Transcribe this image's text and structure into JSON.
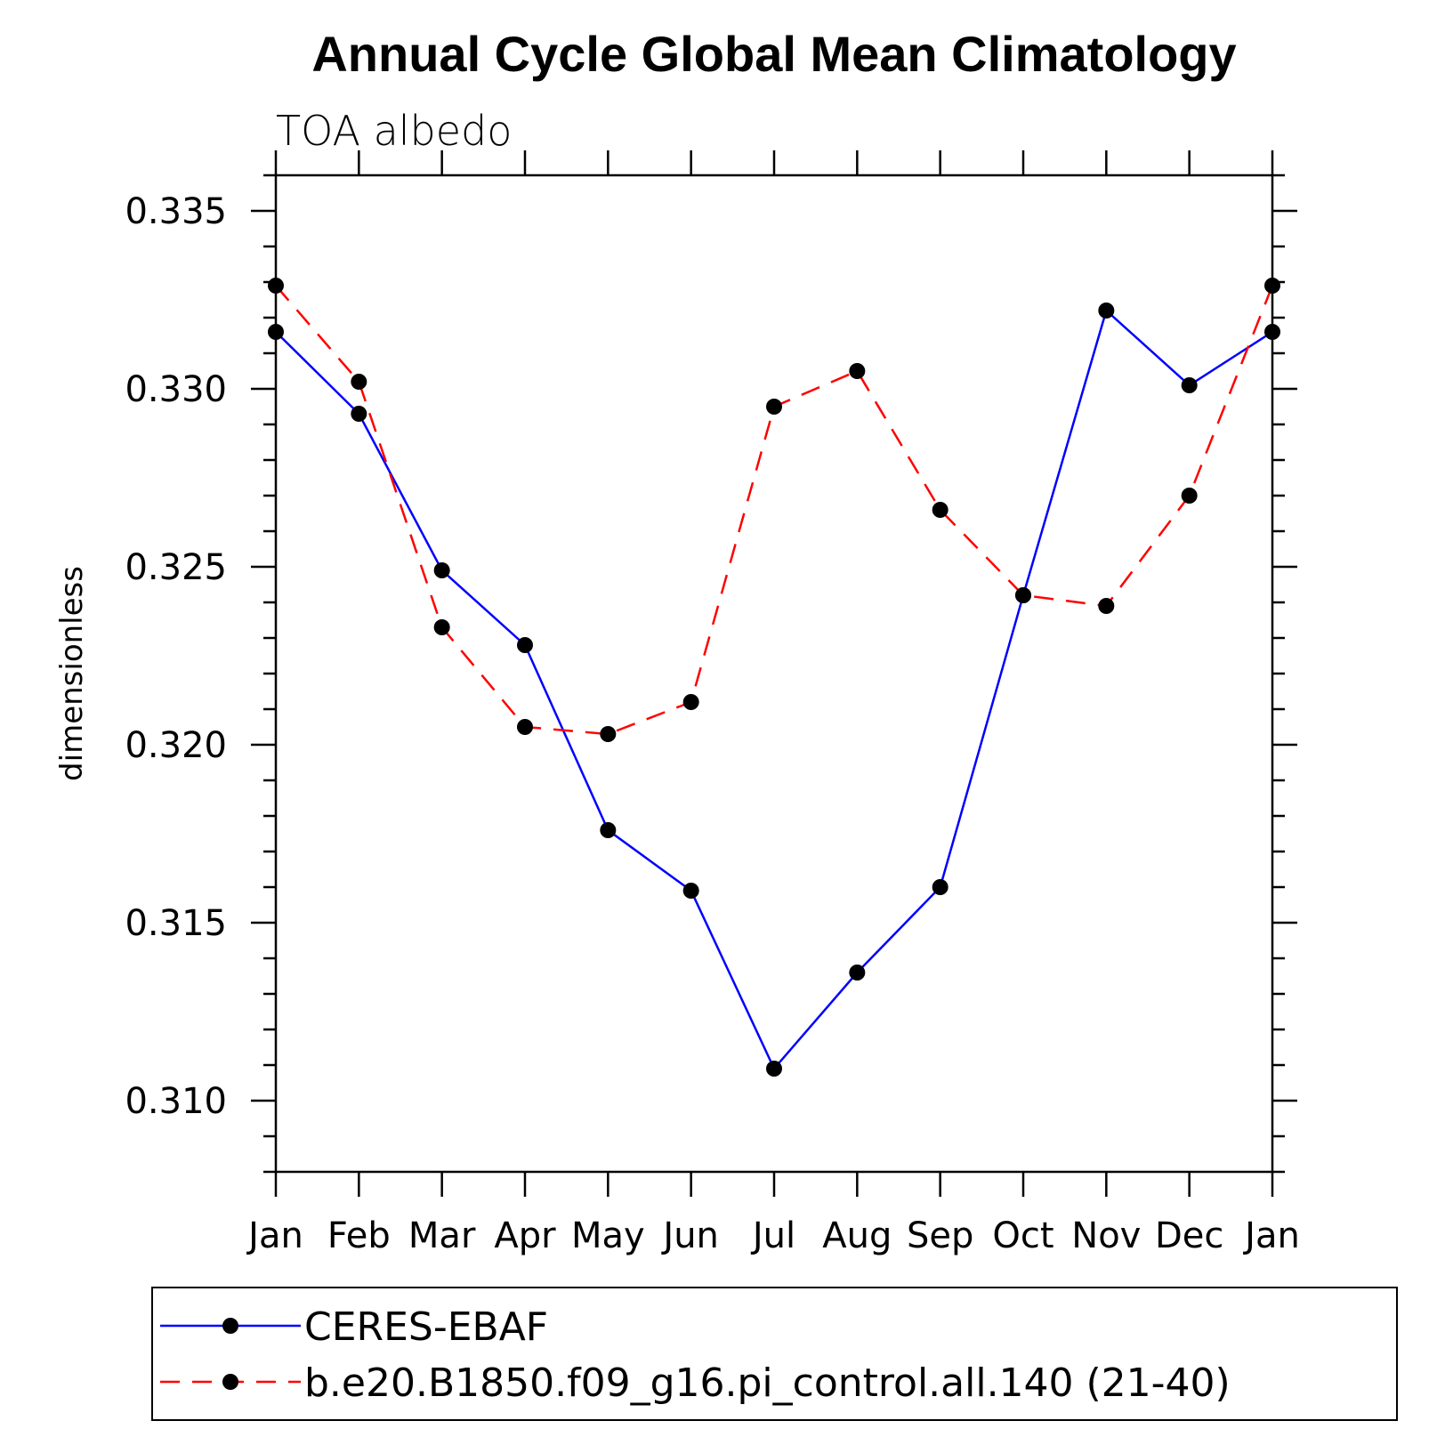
{
  "chart_data": {
    "type": "line",
    "title": "Annual Cycle Global Mean Climatology",
    "subtitle": "TOA albedo",
    "xlabel": "",
    "ylabel": "dimensionless",
    "categories": [
      "Jan",
      "Feb",
      "Mar",
      "Apr",
      "May",
      "Jun",
      "Jul",
      "Aug",
      "Sep",
      "Oct",
      "Nov",
      "Dec",
      "Jan"
    ],
    "ylim": [
      0.308,
      0.336
    ],
    "yticks": [
      0.31,
      0.315,
      0.32,
      0.325,
      0.33,
      0.335
    ],
    "ytick_labels": [
      "0.310",
      "0.315",
      "0.320",
      "0.325",
      "0.330",
      "0.335"
    ],
    "series": [
      {
        "name": "CERES-EBAF",
        "color": "#0000ff",
        "dash": "solid",
        "values": [
          0.3316,
          0.3293,
          0.3249,
          0.3228,
          0.3176,
          0.3159,
          0.3109,
          0.3136,
          0.316,
          0.3242,
          0.3322,
          0.3301,
          0.3316
        ]
      },
      {
        "name": "b.e20.B1850.f09_g16.pi_control.all.140 (21-40)",
        "color": "#ff0000",
        "dash": "dashed",
        "values": [
          0.3329,
          0.3302,
          0.3233,
          0.3205,
          0.3203,
          0.3212,
          0.3295,
          0.3305,
          0.3266,
          0.3242,
          0.3239,
          0.327,
          0.3329
        ]
      }
    ],
    "legend_location": "bottom"
  }
}
